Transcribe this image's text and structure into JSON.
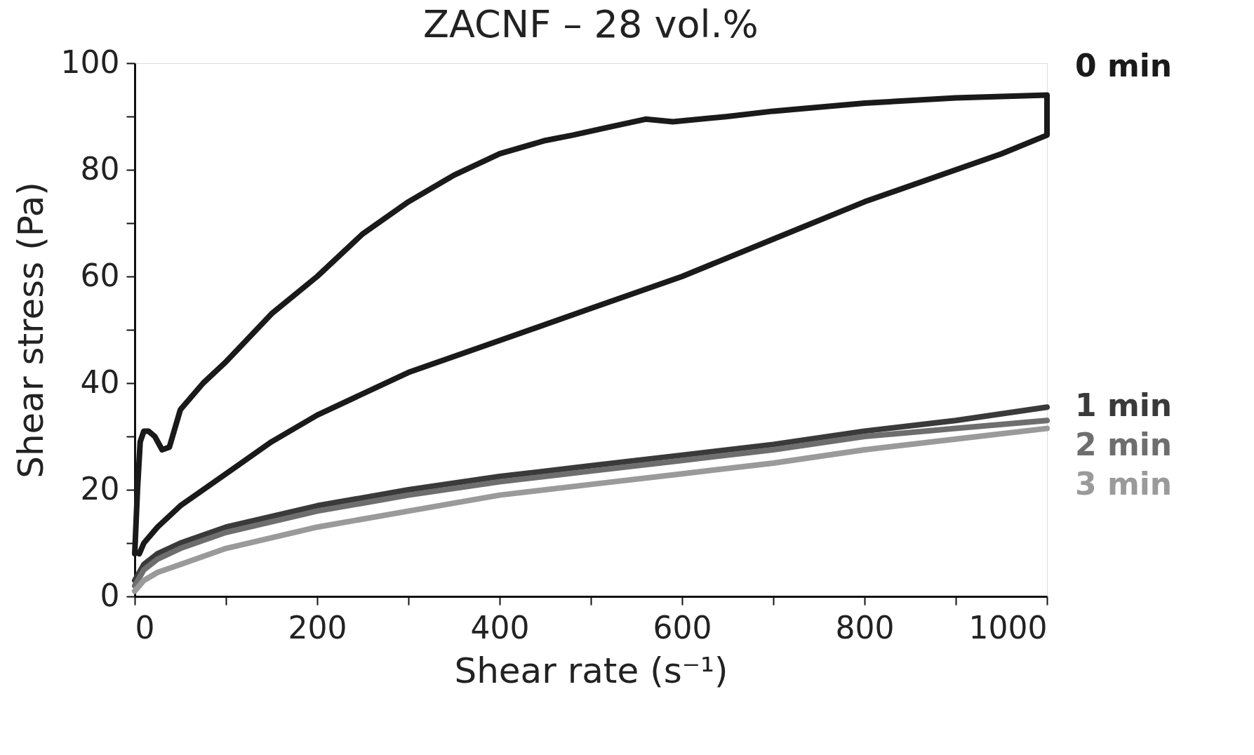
{
  "chart_data": {
    "type": "line",
    "title": "ZACNF – 28 vol.%",
    "xlabel": "Shear rate (s⁻¹)",
    "ylabel": "Shear stress (Pa)",
    "xlim": [
      0,
      1000
    ],
    "ylim": [
      0,
      100
    ],
    "xticks": [
      0,
      {
        "value": 100,
        "label": null
      },
      200,
      {
        "value": 300,
        "label": null
      },
      400,
      {
        "value": 500,
        "label": null
      },
      600,
      {
        "value": 700,
        "label": null
      },
      800,
      {
        "value": 900,
        "label": null
      },
      1000
    ],
    "yticks": [
      0,
      {
        "value": 10,
        "label": null
      },
      20,
      {
        "value": 30,
        "label": null
      },
      40,
      {
        "value": 50,
        "label": null
      },
      60,
      {
        "value": 70,
        "label": null
      },
      80,
      {
        "value": 90,
        "label": null
      },
      100
    ],
    "grid": false,
    "marker": "none",
    "line_style": "solid",
    "series": [
      {
        "name": "0 min",
        "color": "#1a1a1a",
        "x": [
          0,
          3,
          6,
          10,
          15,
          22,
          30,
          38,
          50,
          75,
          100,
          150,
          200,
          250,
          300,
          350,
          400,
          450,
          480,
          520,
          560,
          590,
          650,
          700,
          800,
          900,
          1000,
          1000,
          950,
          900,
          800,
          700,
          600,
          500,
          400,
          300,
          200,
          150,
          100,
          50,
          25,
          10,
          5
        ],
        "values": [
          8,
          20,
          29,
          31,
          31,
          30,
          27.5,
          28,
          35,
          40,
          44,
          53,
          60,
          68,
          74,
          79,
          83,
          85.5,
          86.5,
          88,
          89.5,
          89,
          90,
          91,
          92.5,
          93.5,
          94,
          86.5,
          83,
          80,
          74,
          67,
          60,
          54,
          48,
          42,
          34,
          29,
          23,
          17,
          13,
          10,
          8
        ]
      },
      {
        "name": "1 min",
        "color": "#3a3a3a",
        "x": [
          0,
          10,
          25,
          50,
          100,
          200,
          300,
          400,
          500,
          600,
          700,
          800,
          900,
          1000
        ],
        "values": [
          3,
          6,
          8,
          10,
          13,
          17,
          20,
          22.5,
          24.5,
          26.5,
          28.5,
          31,
          33,
          35.5
        ]
      },
      {
        "name": "2 min",
        "color": "#6e6e6e",
        "x": [
          0,
          10,
          25,
          50,
          100,
          200,
          300,
          400,
          500,
          600,
          700,
          800,
          900,
          1000
        ],
        "values": [
          2,
          5,
          7,
          9,
          12,
          16,
          19,
          21.5,
          23.5,
          25.5,
          27.5,
          30,
          31.5,
          33
        ]
      },
      {
        "name": "3 min",
        "color": "#9a9a9a",
        "x": [
          0,
          10,
          25,
          50,
          100,
          200,
          300,
          400,
          500,
          600,
          700,
          800,
          900,
          1000
        ],
        "values": [
          1,
          3,
          4.5,
          6,
          9,
          13,
          16,
          19,
          21,
          23,
          25,
          27.5,
          29.5,
          31.5
        ]
      }
    ]
  }
}
